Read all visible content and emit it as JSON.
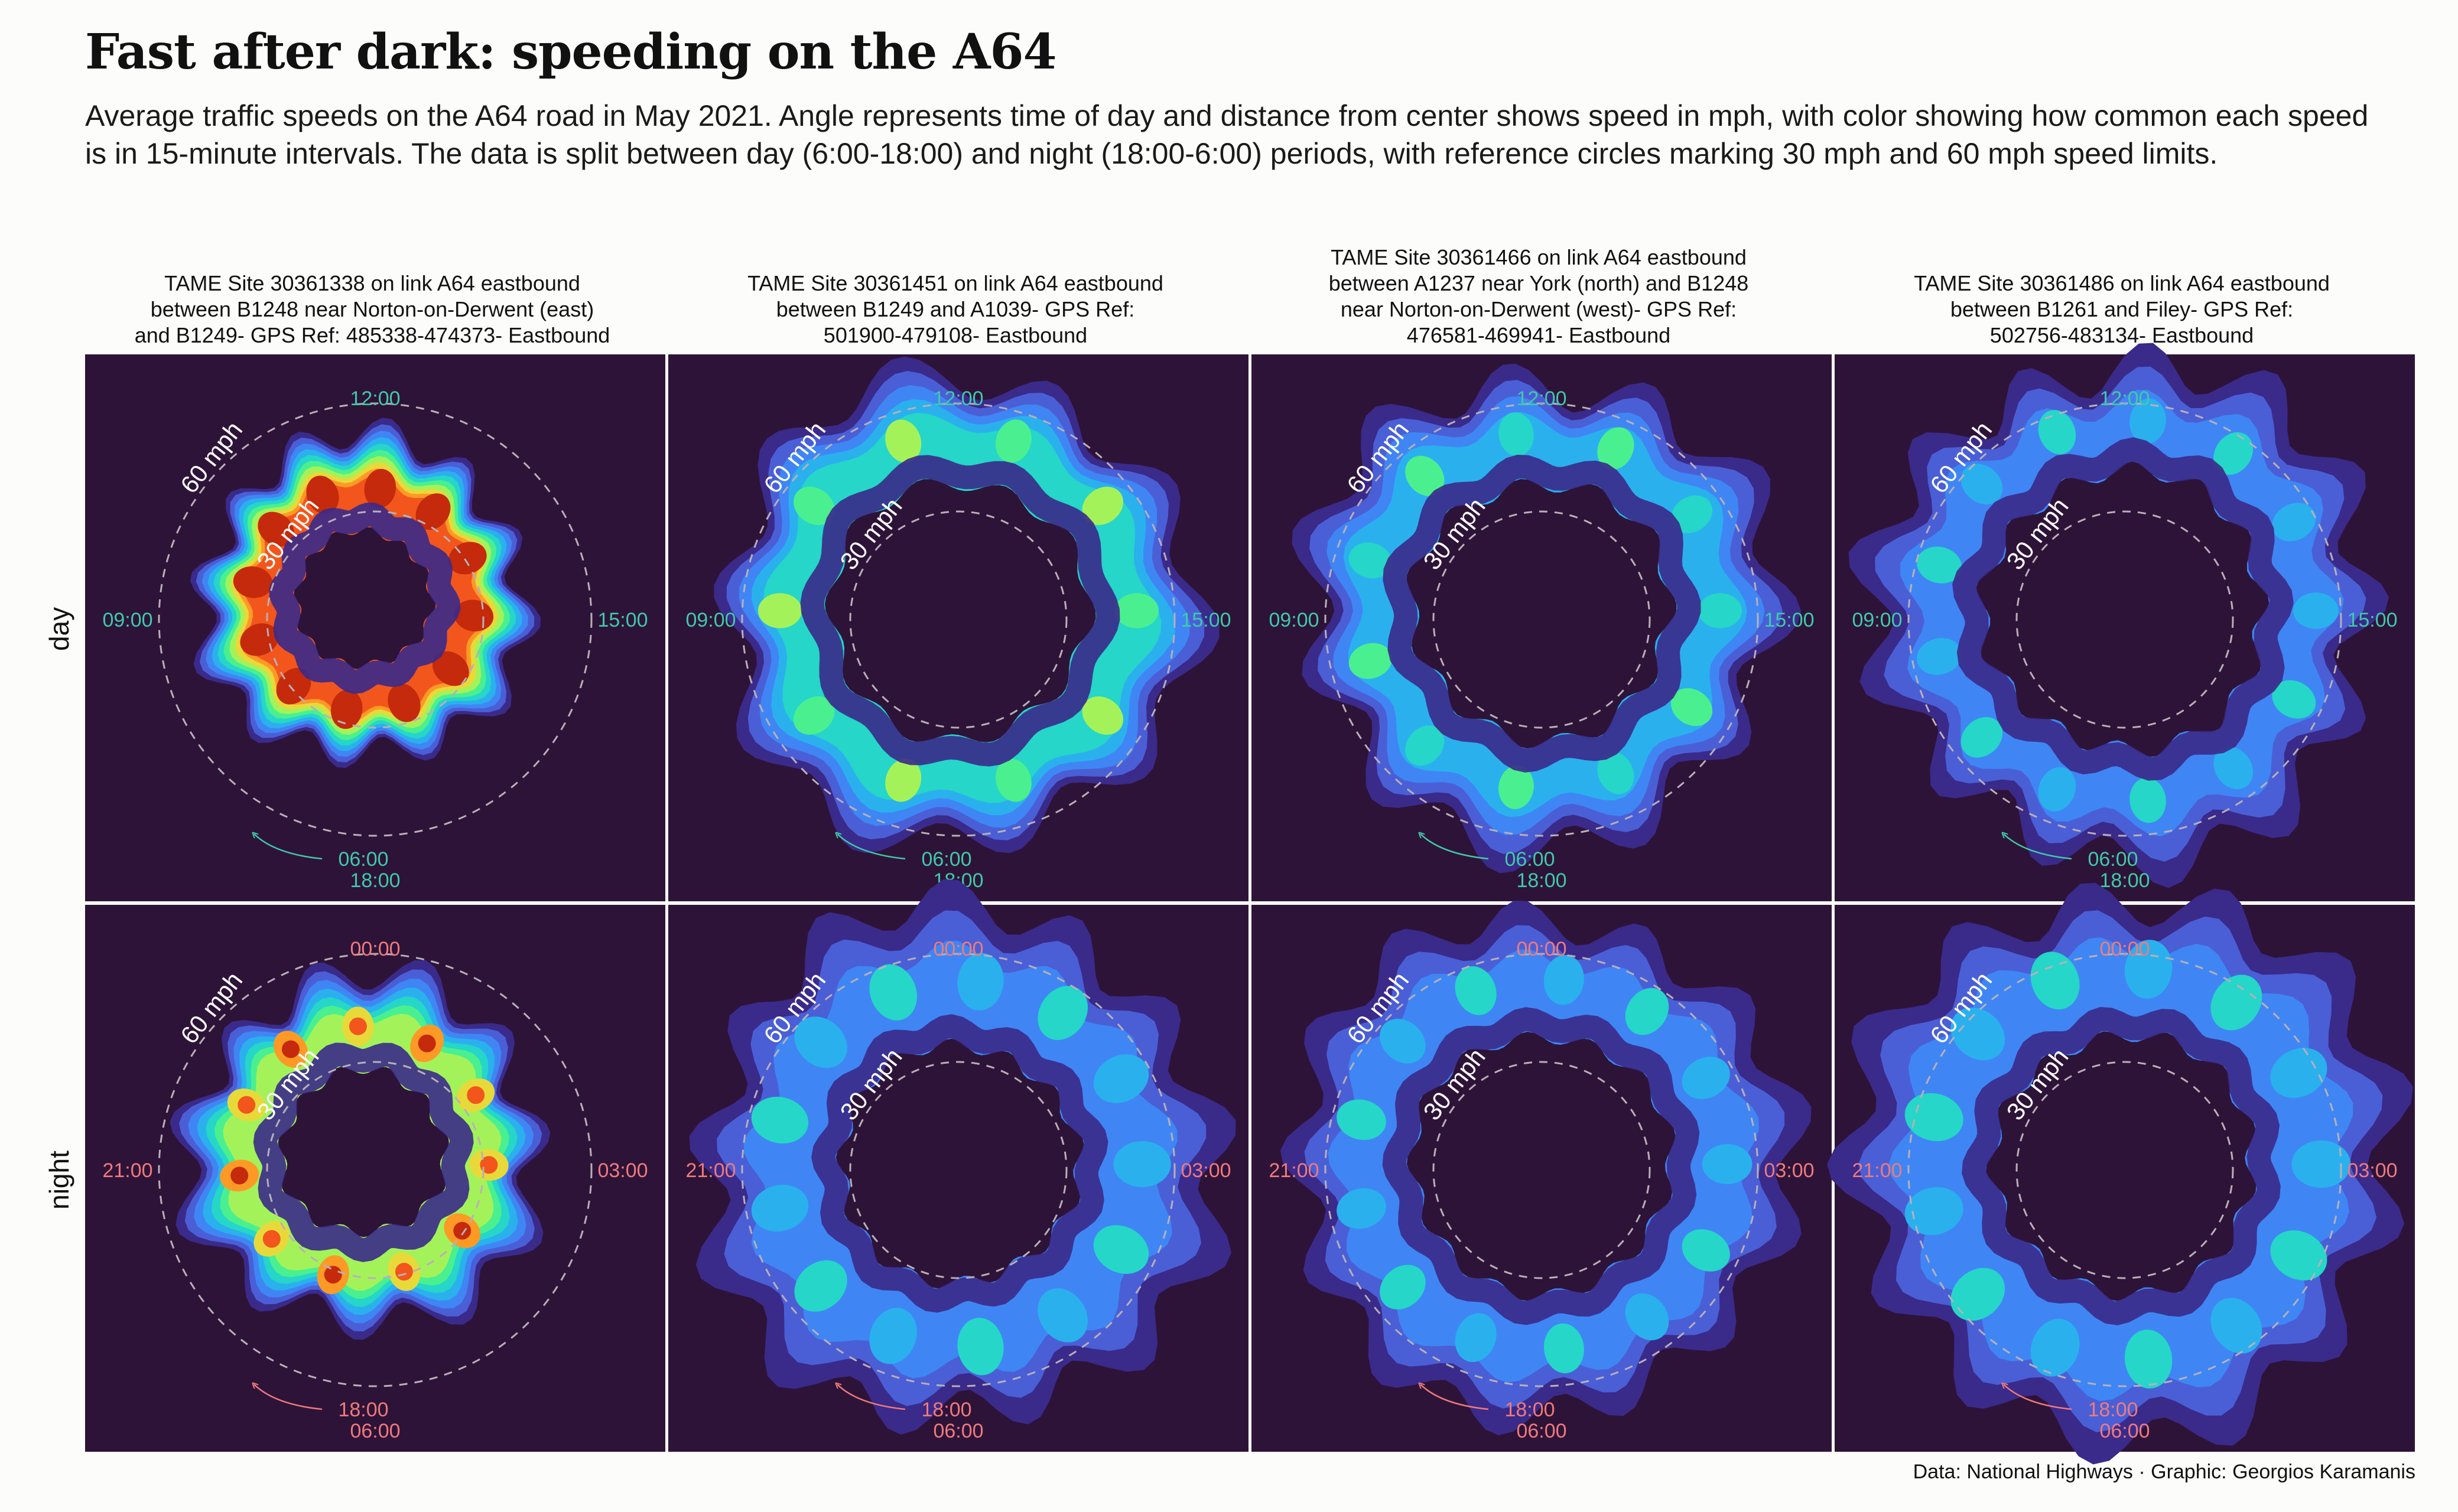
{
  "title": "Fast after dark: speeding on the A64",
  "subtitle": "Average traffic speeds on the A64 road in May 2021. Angle represents time of day and distance from center shows speed in mph, with color showing how common each speed is in 15-minute intervals. The data is split between day (6:00-18:00) and night (18:00-6:00) periods, with reference circles marking 30 mph and 60 mph speed limits.",
  "caption": "Data: National Highways · Graphic: Georgios Karamanis",
  "rows": [
    {
      "label": "day",
      "top": "12:00",
      "left": "09:00",
      "right": "15:00",
      "bottom1": "06:00",
      "bottom2": "18:00"
    },
    {
      "label": "night",
      "top": "00:00",
      "left": "21:00",
      "right": "03:00",
      "bottom1": "18:00",
      "bottom2": "06:00"
    }
  ],
  "sites": [
    "TAME Site 30361338 on link A64 eastbound\nbetween B1248 near Norton-on-Derwent (east)\nand B1249- GPS Ref: 485338-474373- Eastbound",
    "TAME Site 30361451 on link A64 eastbound\nbetween B1249 and A1039- GPS Ref:\n501900-479108- Eastbound",
    "TAME Site 30361466 on link A64 eastbound\nbetween A1237 near York (north) and B1248\nnear Norton-on-Derwent (west)- GPS Ref:\n476581-469941- Eastbound",
    "TAME Site 30361486 on link A64 eastbound\nbetween B1261 and Filey- GPS Ref:\n502756-483134- Eastbound"
  ],
  "reference_labels": {
    "ref30": "30 mph",
    "ref60": "60 mph"
  },
  "colors": {
    "panel_bg": "#2e1338",
    "day_tick": "#3fc9a9",
    "night_tick": "#ef7a7c",
    "ref_circle": "#b8b0b8",
    "density_scale": [
      "#3a2a8a",
      "#4a5fd6",
      "#3f86f4",
      "#2bb0ee",
      "#26d6c8",
      "#4af08f",
      "#a4f25a",
      "#e8d93a",
      "#fd9a26",
      "#f2561c",
      "#c42a0b"
    ]
  },
  "chart_data": {
    "type": "radial density heatmap",
    "angle_axis": "time of day",
    "radius_axis": "speed (mph)",
    "reference_circles_mph": [
      30,
      60
    ],
    "panels": [
      {
        "site": "30361338",
        "period": "day",
        "speed_mph_range": [
          18,
          44
        ],
        "peak_density": "high"
      },
      {
        "site": "30361451",
        "period": "day",
        "speed_mph_range": [
          35,
          64
        ],
        "peak_density": "medium"
      },
      {
        "site": "30361466",
        "period": "day",
        "speed_mph_range": [
          35,
          64
        ],
        "peak_density": "medium"
      },
      {
        "site": "30361486",
        "period": "day",
        "speed_mph_range": [
          38,
          68
        ],
        "peak_density": "low"
      },
      {
        "site": "30361338",
        "period": "night",
        "speed_mph_range": [
          22,
          48
        ],
        "peak_density": "high"
      },
      {
        "site": "30361451",
        "period": "night",
        "speed_mph_range": [
          32,
          70
        ],
        "peak_density": "low"
      },
      {
        "site": "30361466",
        "period": "night",
        "speed_mph_range": [
          35,
          68
        ],
        "peak_density": "low"
      },
      {
        "site": "30361486",
        "period": "night",
        "speed_mph_range": [
          35,
          74
        ],
        "peak_density": "low"
      }
    ]
  }
}
